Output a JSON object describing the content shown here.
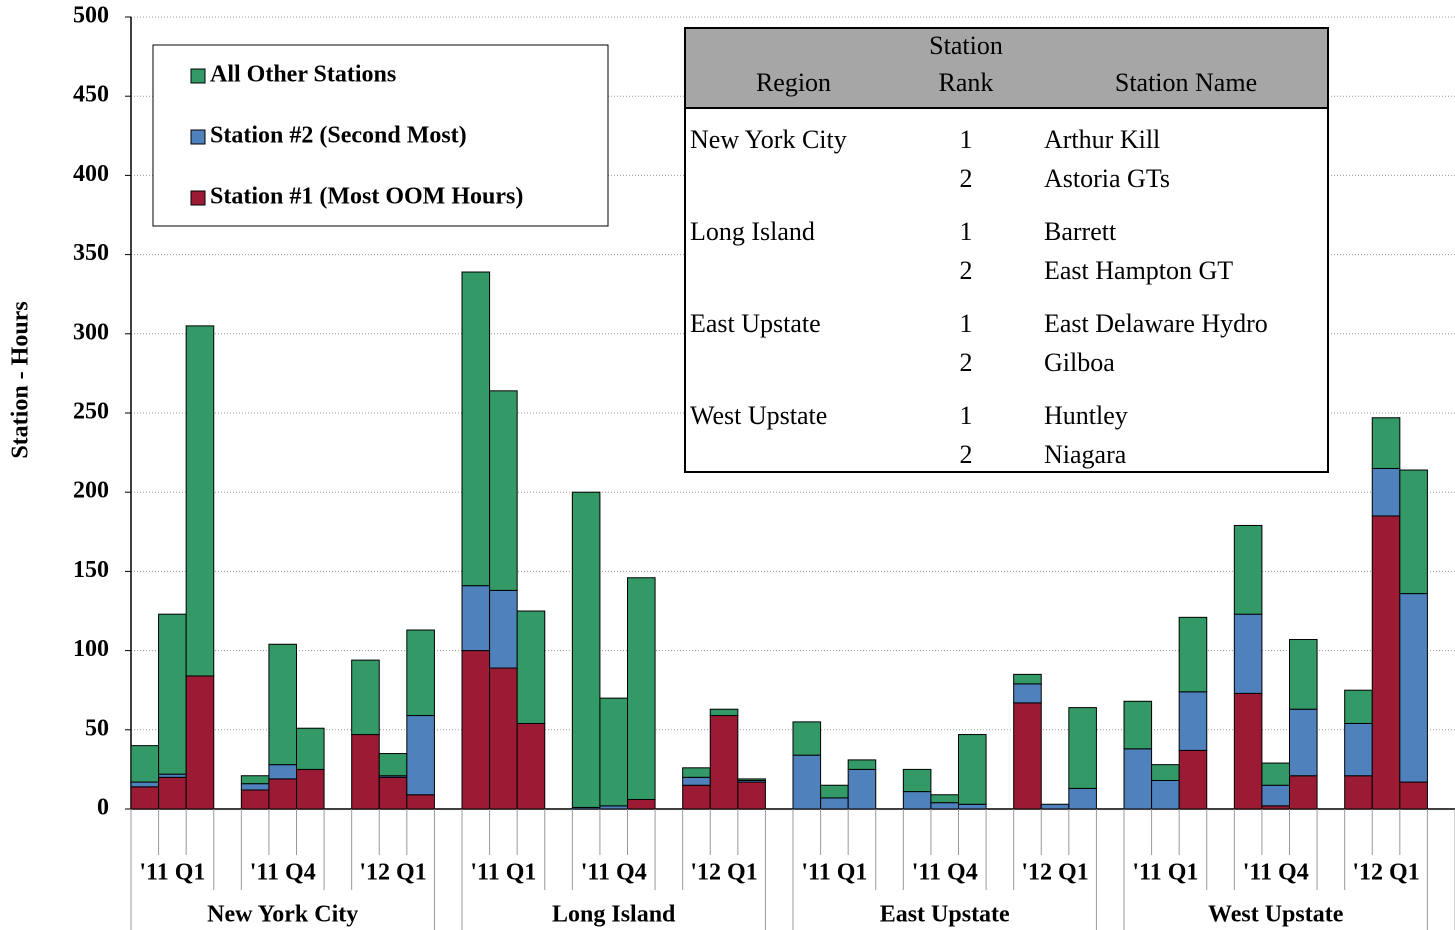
{
  "chart_data": {
    "type": "stacked-bar",
    "ylabel": "Station - Hours",
    "ylim": [
      0,
      500
    ],
    "yticks": [
      0,
      50,
      100,
      150,
      200,
      250,
      300,
      350,
      400,
      450,
      500
    ],
    "grid": true,
    "legend": "upper left",
    "regions": [
      "New York City",
      "Long Island",
      "East Upstate",
      "West Upstate"
    ],
    "quarters": [
      "'11 Q1",
      "'11 Q4",
      "'12 Q1"
    ],
    "series": [
      {
        "name": "Station #1 (Most OOM Hours)",
        "color": "#9b1b34",
        "values": [
          14,
          20,
          84,
          12,
          19,
          25,
          47,
          20,
          9,
          100,
          89,
          54,
          0,
          0,
          6,
          15,
          59,
          17,
          0,
          0,
          0,
          0,
          0,
          0,
          67,
          0,
          0,
          0,
          0,
          37,
          73,
          2,
          21,
          21,
          185,
          17
        ]
      },
      {
        "name": "Station #2 (Second Most)",
        "color": "#4f81bd",
        "values": [
          3,
          2,
          0,
          4,
          9,
          0,
          0,
          1,
          50,
          41,
          49,
          0,
          1,
          2,
          0,
          5,
          0,
          1,
          34,
          7,
          25,
          11,
          4,
          3,
          12,
          3,
          13,
          38,
          18,
          37,
          50,
          13,
          42,
          33,
          30,
          119
        ]
      },
      {
        "name": "All Other Stations",
        "color": "#339966",
        "values": [
          23,
          101,
          221,
          5,
          76,
          26,
          47,
          14,
          54,
          198,
          126,
          71,
          199,
          68,
          140,
          6,
          4,
          1,
          21,
          8,
          6,
          14,
          5,
          44,
          6,
          0,
          51,
          30,
          10,
          47,
          56,
          14,
          44,
          21,
          32,
          78
        ]
      }
    ],
    "annotation_table": {
      "headers": [
        "Region",
        "Station Rank",
        "Station Name"
      ],
      "rows": [
        {
          "region": "New York City",
          "stations": [
            {
              "rank": 1,
              "name": "Arthur Kill"
            },
            {
              "rank": 2,
              "name": "Astoria GTs"
            }
          ]
        },
        {
          "region": "Long Island",
          "stations": [
            {
              "rank": 1,
              "name": "Barrett"
            },
            {
              "rank": 2,
              "name": "East Hampton GT"
            }
          ]
        },
        {
          "region": "East Upstate",
          "stations": [
            {
              "rank": 1,
              "name": "East Delaware Hydro"
            },
            {
              "rank": 2,
              "name": "Gilboa"
            }
          ]
        },
        {
          "region": "West Upstate",
          "stations": [
            {
              "rank": 1,
              "name": "Huntley"
            },
            {
              "rank": 2,
              "name": "Niagara"
            }
          ]
        }
      ]
    }
  }
}
